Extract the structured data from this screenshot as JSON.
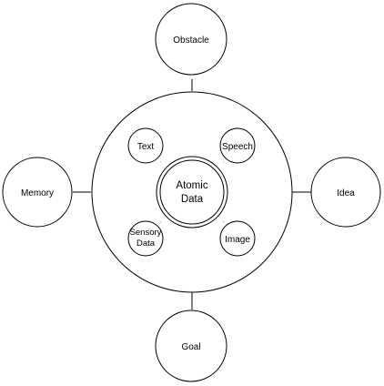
{
  "diagram": {
    "outer_nodes": {
      "obstacle": "Obstacle",
      "memory": "Memory",
      "idea": "Idea",
      "goal": "Goal"
    },
    "inner_nodes": {
      "text": "Text",
      "speech": "Speech",
      "sensory_line1": "Sensory",
      "sensory_line2": "Data",
      "image": "Image"
    },
    "center": {
      "line1": "Atomic",
      "line2": "Data"
    }
  },
  "colors": {
    "stroke": "#000000",
    "fill": "#ffffff"
  }
}
